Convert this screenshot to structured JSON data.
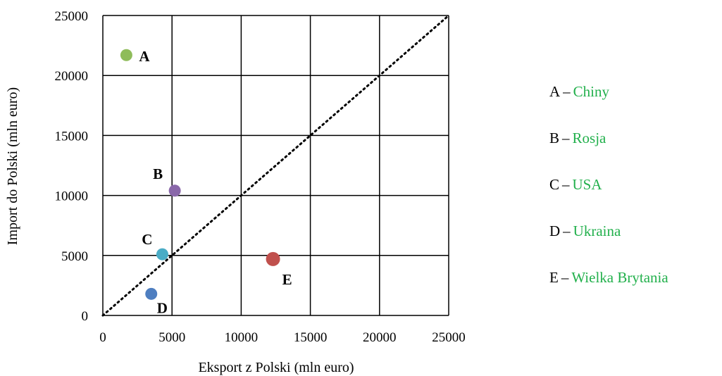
{
  "chart_data": {
    "type": "scatter",
    "xlabel": "Eksport z Polski (mln euro)",
    "ylabel": "Import do Polski (mln euro)",
    "xlim": [
      0,
      25000
    ],
    "ylim": [
      0,
      25000
    ],
    "xticks": [
      "0",
      "5000",
      "10000",
      "15000",
      "20000",
      "25000"
    ],
    "yticks": [
      "0",
      "5000",
      "10000",
      "15000",
      "20000",
      "25000"
    ],
    "grid": true,
    "reference_line": {
      "style": "dotted",
      "from": [
        0,
        0
      ],
      "to": [
        25000,
        25000
      ]
    },
    "points": [
      {
        "label": "A",
        "x": 1700,
        "y": 21700,
        "color": "#8fbc5a"
      },
      {
        "label": "B",
        "x": 5200,
        "y": 10400,
        "color": "#8a68aa"
      },
      {
        "label": "C",
        "x": 4300,
        "y": 5100,
        "color": "#4aacc6"
      },
      {
        "label": "D",
        "x": 3500,
        "y": 1800,
        "color": "#4e7ec0"
      },
      {
        "label": "E",
        "x": 12300,
        "y": 4700,
        "color": "#c0504d"
      }
    ]
  },
  "legend": {
    "separator": "–",
    "items": [
      {
        "key": "A",
        "name": "Chiny"
      },
      {
        "key": "B",
        "name": "Rosja"
      },
      {
        "key": "C",
        "name": "USA"
      },
      {
        "key": "D",
        "name": "Ukraina"
      },
      {
        "key": "E",
        "name": "Wielka Brytania"
      }
    ],
    "name_color": "#22b04c"
  }
}
